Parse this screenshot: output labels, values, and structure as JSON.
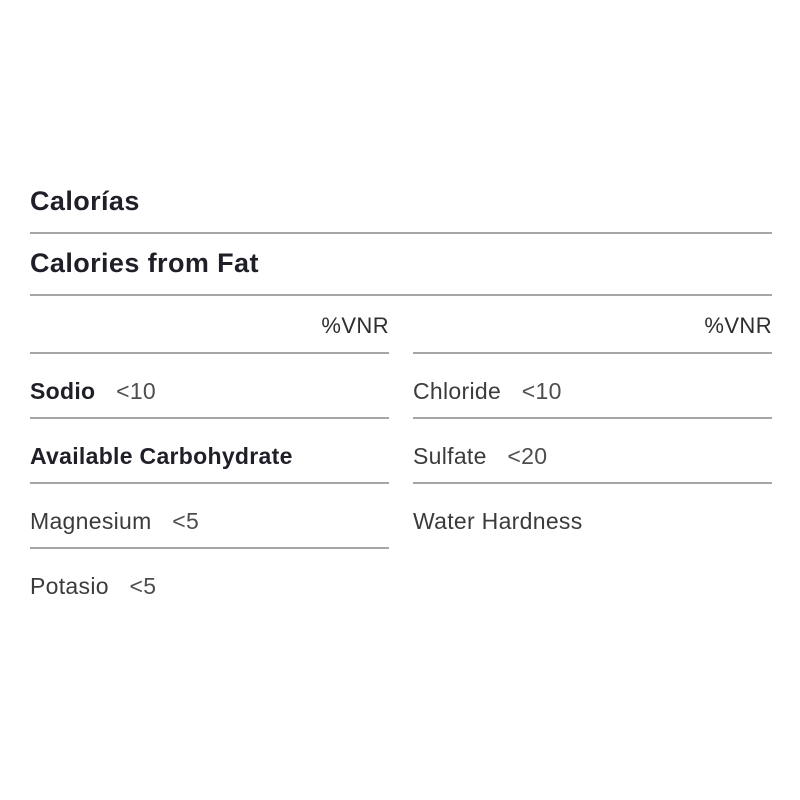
{
  "page": {
    "background_color": "#ffffff",
    "header_text_color": "#1d1d26",
    "label_text_color": "#3b3b3b",
    "value_text_color": "#4e4e4e",
    "divider_color": "#a6a6a6"
  },
  "nutrition_table": {
    "full_rows": [
      {
        "label": "Calorías"
      },
      {
        "label": "Calories from Fat"
      }
    ],
    "columns": [
      {
        "percent_header": "%VNR",
        "rows": [
          {
            "label": "Sodio",
            "value": "<10"
          },
          {
            "label": "Available Carbohydrate",
            "value": ""
          },
          {
            "label": "Magnesium",
            "value": "<5"
          },
          {
            "label": "Potasio",
            "value": "<5"
          }
        ]
      },
      {
        "percent_header": "%VNR",
        "rows": [
          {
            "label": "Chloride",
            "value": "<10"
          },
          {
            "label": "Sulfate",
            "value": "<20"
          },
          {
            "label": "Water Hardness",
            "value": ""
          }
        ]
      }
    ]
  }
}
